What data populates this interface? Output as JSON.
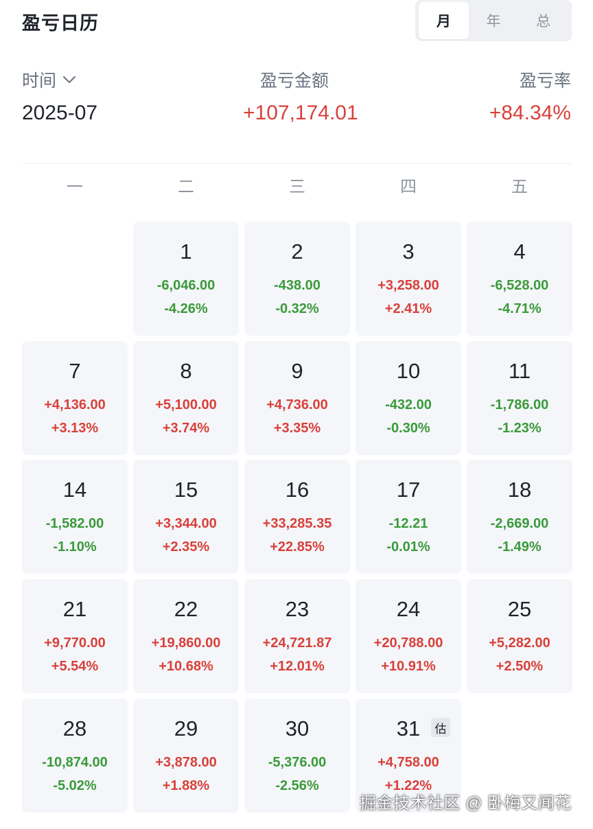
{
  "header": {
    "title": "盈亏日历",
    "tabs": [
      {
        "label": "月",
        "active": true
      },
      {
        "label": "年",
        "active": false
      },
      {
        "label": "总",
        "active": false
      }
    ]
  },
  "summary": {
    "time_label": "时间",
    "time_value": "2025-07",
    "amount_label": "盈亏金额",
    "amount_value": "+107,174.01",
    "rate_label": "盈亏率",
    "rate_value": "+84.34%"
  },
  "weekdays": [
    "一",
    "二",
    "三",
    "四",
    "五"
  ],
  "days": [
    {
      "day": "1",
      "amount": "-6,046.00",
      "rate": "-4.26%",
      "sign": "neg"
    },
    {
      "day": "2",
      "amount": "-438.00",
      "rate": "-0.32%",
      "sign": "neg"
    },
    {
      "day": "3",
      "amount": "+3,258.00",
      "rate": "+2.41%",
      "sign": "pos"
    },
    {
      "day": "4",
      "amount": "-6,528.00",
      "rate": "-4.71%",
      "sign": "neg"
    },
    {
      "day": "7",
      "amount": "+4,136.00",
      "rate": "+3.13%",
      "sign": "pos"
    },
    {
      "day": "8",
      "amount": "+5,100.00",
      "rate": "+3.74%",
      "sign": "pos"
    },
    {
      "day": "9",
      "amount": "+4,736.00",
      "rate": "+3.35%",
      "sign": "pos"
    },
    {
      "day": "10",
      "amount": "-432.00",
      "rate": "-0.30%",
      "sign": "neg"
    },
    {
      "day": "11",
      "amount": "-1,786.00",
      "rate": "-1.23%",
      "sign": "neg"
    },
    {
      "day": "14",
      "amount": "-1,582.00",
      "rate": "-1.10%",
      "sign": "neg"
    },
    {
      "day": "15",
      "amount": "+3,344.00",
      "rate": "+2.35%",
      "sign": "pos"
    },
    {
      "day": "16",
      "amount": "+33,285.35",
      "rate": "+22.85%",
      "sign": "pos"
    },
    {
      "day": "17",
      "amount": "-12.21",
      "rate": "-0.01%",
      "sign": "neg"
    },
    {
      "day": "18",
      "amount": "-2,669.00",
      "rate": "-1.49%",
      "sign": "neg"
    },
    {
      "day": "21",
      "amount": "+9,770.00",
      "rate": "+5.54%",
      "sign": "pos"
    },
    {
      "day": "22",
      "amount": "+19,860.00",
      "rate": "+10.68%",
      "sign": "pos"
    },
    {
      "day": "23",
      "amount": "+24,721.87",
      "rate": "+12.01%",
      "sign": "pos"
    },
    {
      "day": "24",
      "amount": "+20,788.00",
      "rate": "+10.91%",
      "sign": "pos"
    },
    {
      "day": "25",
      "amount": "+5,282.00",
      "rate": "+2.50%",
      "sign": "pos"
    },
    {
      "day": "28",
      "amount": "-10,874.00",
      "rate": "-5.02%",
      "sign": "neg"
    },
    {
      "day": "29",
      "amount": "+3,878.00",
      "rate": "+1.88%",
      "sign": "pos"
    },
    {
      "day": "30",
      "amount": "-5,376.00",
      "rate": "-2.56%",
      "sign": "neg"
    },
    {
      "day": "31",
      "amount": "+4,758.00",
      "rate": "+1.22%",
      "sign": "pos",
      "badge": "估"
    }
  ],
  "watermark": "掘金技术社区 @ 卧梅又闻花",
  "colors": {
    "positive": "#d9403a",
    "negative": "#3a9a3a",
    "cell_bg": "#f4f6f9"
  }
}
